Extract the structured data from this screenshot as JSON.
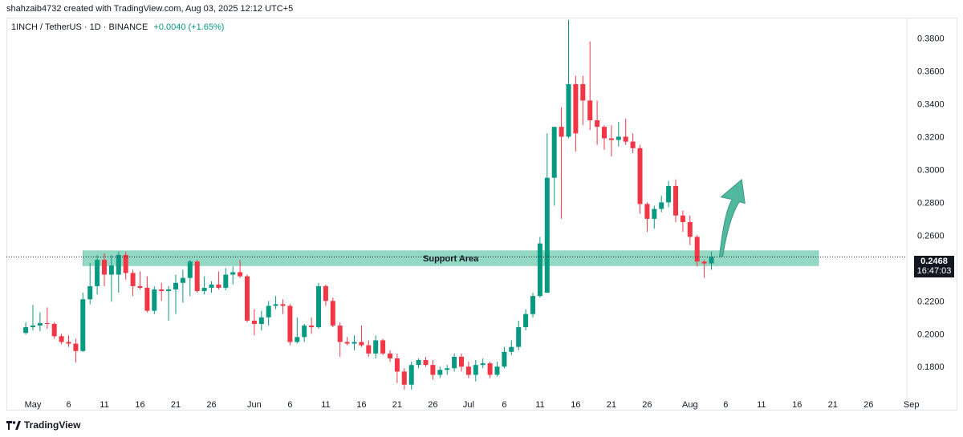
{
  "header": {
    "credit": "shahzaib4732 created with TradingView.com, Aug 03, 2025 12:12 UTC+5"
  },
  "legend": {
    "symbol": "1INCH / TetherUS · 1D · BINANCE",
    "change": "+0.0040 (+1.65%)"
  },
  "price_tag": {
    "value": "0.2468",
    "countdown": "16:47:03"
  },
  "footer": {
    "brand": "TradingView"
  },
  "colors": {
    "up": "#089981",
    "down": "#f23645",
    "support": "#7fd1b9",
    "arrow": "#4fb89e",
    "grid": "#ffffff",
    "axis_text": "#131722"
  },
  "chart_data": {
    "type": "candlestick",
    "y_axis": {
      "position": "right",
      "ticks": [
        0.18,
        0.2,
        0.22,
        0.24,
        0.26,
        0.28,
        0.3,
        0.32,
        0.34,
        0.36,
        0.38
      ],
      "tick_labels": [
        "0.1800",
        "0.2000",
        "0.2200",
        "0.2400",
        "0.2600",
        "0.2800",
        "0.3000",
        "0.3200",
        "0.3400",
        "0.3600",
        "0.3800"
      ],
      "range": [
        0.164,
        0.392
      ]
    },
    "x_axis": {
      "labels": [
        {
          "date": "2025-05-01",
          "text": "May"
        },
        {
          "date": "2025-05-06",
          "text": "6"
        },
        {
          "date": "2025-05-11",
          "text": "11"
        },
        {
          "date": "2025-05-16",
          "text": "16"
        },
        {
          "date": "2025-05-21",
          "text": "21"
        },
        {
          "date": "2025-05-26",
          "text": "26"
        },
        {
          "date": "2025-06-01",
          "text": "Jun"
        },
        {
          "date": "2025-06-06",
          "text": "6"
        },
        {
          "date": "2025-06-11",
          "text": "11"
        },
        {
          "date": "2025-06-16",
          "text": "16"
        },
        {
          "date": "2025-06-21",
          "text": "21"
        },
        {
          "date": "2025-06-26",
          "text": "26"
        },
        {
          "date": "2025-07-01",
          "text": "Jul"
        },
        {
          "date": "2025-07-06",
          "text": "6"
        },
        {
          "date": "2025-07-11",
          "text": "11"
        },
        {
          "date": "2025-07-16",
          "text": "16"
        },
        {
          "date": "2025-07-21",
          "text": "21"
        },
        {
          "date": "2025-07-26",
          "text": "26"
        },
        {
          "date": "2025-08-01",
          "text": "Aug"
        },
        {
          "date": "2025-08-06",
          "text": "6"
        },
        {
          "date": "2025-08-11",
          "text": "11"
        },
        {
          "date": "2025-08-16",
          "text": "16"
        },
        {
          "date": "2025-08-21",
          "text": "21"
        },
        {
          "date": "2025-08-26",
          "text": "26"
        },
        {
          "date": "2025-09-01",
          "text": "Sep"
        }
      ]
    },
    "candles": [
      {
        "date": "2025-04-30",
        "o": 0.2005,
        "h": 0.207,
        "l": 0.1995,
        "c": 0.204
      },
      {
        "date": "2025-05-01",
        "o": 0.204,
        "h": 0.2175,
        "l": 0.202,
        "c": 0.205
      },
      {
        "date": "2025-05-02",
        "o": 0.205,
        "h": 0.213,
        "l": 0.2015,
        "c": 0.2065
      },
      {
        "date": "2025-05-03",
        "o": 0.2065,
        "h": 0.216,
        "l": 0.203,
        "c": 0.206
      },
      {
        "date": "2025-05-04",
        "o": 0.206,
        "h": 0.207,
        "l": 0.197,
        "c": 0.1985
      },
      {
        "date": "2025-05-05",
        "o": 0.1985,
        "h": 0.2,
        "l": 0.1935,
        "c": 0.195
      },
      {
        "date": "2025-05-06",
        "o": 0.195,
        "h": 0.199,
        "l": 0.192,
        "c": 0.194
      },
      {
        "date": "2025-05-07",
        "o": 0.194,
        "h": 0.197,
        "l": 0.1825,
        "c": 0.1895
      },
      {
        "date": "2025-05-08",
        "o": 0.1895,
        "h": 0.225,
        "l": 0.189,
        "c": 0.221
      },
      {
        "date": "2025-05-09",
        "o": 0.221,
        "h": 0.243,
        "l": 0.218,
        "c": 0.229
      },
      {
        "date": "2025-05-10",
        "o": 0.229,
        "h": 0.248,
        "l": 0.224,
        "c": 0.245
      },
      {
        "date": "2025-05-11",
        "o": 0.245,
        "h": 0.249,
        "l": 0.229,
        "c": 0.236
      },
      {
        "date": "2025-05-12",
        "o": 0.236,
        "h": 0.248,
        "l": 0.2195,
        "c": 0.2415
      },
      {
        "date": "2025-05-13",
        "o": 0.236,
        "h": 0.25,
        "l": 0.225,
        "c": 0.248
      },
      {
        "date": "2025-05-14",
        "o": 0.248,
        "h": 0.25,
        "l": 0.233,
        "c": 0.237
      },
      {
        "date": "2025-05-15",
        "o": 0.237,
        "h": 0.239,
        "l": 0.223,
        "c": 0.229
      },
      {
        "date": "2025-05-16",
        "o": 0.229,
        "h": 0.238,
        "l": 0.227,
        "c": 0.228
      },
      {
        "date": "2025-05-17",
        "o": 0.228,
        "h": 0.235,
        "l": 0.213,
        "c": 0.214
      },
      {
        "date": "2025-05-18",
        "o": 0.214,
        "h": 0.229,
        "l": 0.212,
        "c": 0.227
      },
      {
        "date": "2025-05-19",
        "o": 0.227,
        "h": 0.231,
        "l": 0.22,
        "c": 0.226
      },
      {
        "date": "2025-05-20",
        "o": 0.226,
        "h": 0.229,
        "l": 0.208,
        "c": 0.227
      },
      {
        "date": "2025-05-21",
        "o": 0.227,
        "h": 0.236,
        "l": 0.212,
        "c": 0.231
      },
      {
        "date": "2025-05-22",
        "o": 0.231,
        "h": 0.239,
        "l": 0.219,
        "c": 0.234
      },
      {
        "date": "2025-05-23",
        "o": 0.234,
        "h": 0.245,
        "l": 0.223,
        "c": 0.244
      },
      {
        "date": "2025-05-24",
        "o": 0.244,
        "h": 0.245,
        "l": 0.225,
        "c": 0.226
      },
      {
        "date": "2025-05-25",
        "o": 0.226,
        "h": 0.235,
        "l": 0.224,
        "c": 0.228
      },
      {
        "date": "2025-05-26",
        "o": 0.228,
        "h": 0.232,
        "l": 0.225,
        "c": 0.23
      },
      {
        "date": "2025-05-27",
        "o": 0.23,
        "h": 0.238,
        "l": 0.227,
        "c": 0.228
      },
      {
        "date": "2025-05-28",
        "o": 0.228,
        "h": 0.24,
        "l": 0.2265,
        "c": 0.236
      },
      {
        "date": "2025-05-29",
        "o": 0.236,
        "h": 0.241,
        "l": 0.23,
        "c": 0.2375
      },
      {
        "date": "2025-05-30",
        "o": 0.2375,
        "h": 0.245,
        "l": 0.234,
        "c": 0.235
      },
      {
        "date": "2025-05-31",
        "o": 0.235,
        "h": 0.236,
        "l": 0.207,
        "c": 0.208
      },
      {
        "date": "2025-06-01",
        "o": 0.208,
        "h": 0.215,
        "l": 0.199,
        "c": 0.206
      },
      {
        "date": "2025-06-02",
        "o": 0.206,
        "h": 0.214,
        "l": 0.202,
        "c": 0.21
      },
      {
        "date": "2025-06-03",
        "o": 0.21,
        "h": 0.22,
        "l": 0.205,
        "c": 0.217
      },
      {
        "date": "2025-06-04",
        "o": 0.217,
        "h": 0.223,
        "l": 0.215,
        "c": 0.218
      },
      {
        "date": "2025-06-05",
        "o": 0.218,
        "h": 0.221,
        "l": 0.212,
        "c": 0.217
      },
      {
        "date": "2025-06-06",
        "o": 0.217,
        "h": 0.218,
        "l": 0.193,
        "c": 0.195
      },
      {
        "date": "2025-06-07",
        "o": 0.195,
        "h": 0.21,
        "l": 0.194,
        "c": 0.198
      },
      {
        "date": "2025-06-08",
        "o": 0.198,
        "h": 0.206,
        "l": 0.195,
        "c": 0.205
      },
      {
        "date": "2025-06-09",
        "o": 0.205,
        "h": 0.21,
        "l": 0.2,
        "c": 0.204
      },
      {
        "date": "2025-06-10",
        "o": 0.204,
        "h": 0.231,
        "l": 0.203,
        "c": 0.229
      },
      {
        "date": "2025-06-11",
        "o": 0.229,
        "h": 0.23,
        "l": 0.217,
        "c": 0.22
      },
      {
        "date": "2025-06-12",
        "o": 0.22,
        "h": 0.222,
        "l": 0.204,
        "c": 0.205
      },
      {
        "date": "2025-06-13",
        "o": 0.205,
        "h": 0.207,
        "l": 0.186,
        "c": 0.195
      },
      {
        "date": "2025-06-14",
        "o": 0.195,
        "h": 0.198,
        "l": 0.193,
        "c": 0.194
      },
      {
        "date": "2025-06-15",
        "o": 0.194,
        "h": 0.199,
        "l": 0.19,
        "c": 0.195
      },
      {
        "date": "2025-06-16",
        "o": 0.195,
        "h": 0.205,
        "l": 0.192,
        "c": 0.193
      },
      {
        "date": "2025-06-17",
        "o": 0.193,
        "h": 0.196,
        "l": 0.186,
        "c": 0.188
      },
      {
        "date": "2025-06-18",
        "o": 0.188,
        "h": 0.199,
        "l": 0.185,
        "c": 0.196
      },
      {
        "date": "2025-06-19",
        "o": 0.196,
        "h": 0.197,
        "l": 0.187,
        "c": 0.188
      },
      {
        "date": "2025-06-20",
        "o": 0.188,
        "h": 0.19,
        "l": 0.183,
        "c": 0.185
      },
      {
        "date": "2025-06-21",
        "o": 0.185,
        "h": 0.188,
        "l": 0.17,
        "c": 0.177
      },
      {
        "date": "2025-06-22",
        "o": 0.177,
        "h": 0.179,
        "l": 0.166,
        "c": 0.169
      },
      {
        "date": "2025-06-23",
        "o": 0.169,
        "h": 0.183,
        "l": 0.166,
        "c": 0.181
      },
      {
        "date": "2025-06-24",
        "o": 0.181,
        "h": 0.185,
        "l": 0.179,
        "c": 0.184
      },
      {
        "date": "2025-06-25",
        "o": 0.184,
        "h": 0.186,
        "l": 0.18,
        "c": 0.181
      },
      {
        "date": "2025-06-26",
        "o": 0.181,
        "h": 0.184,
        "l": 0.172,
        "c": 0.175
      },
      {
        "date": "2025-06-27",
        "o": 0.175,
        "h": 0.18,
        "l": 0.173,
        "c": 0.178
      },
      {
        "date": "2025-06-28",
        "o": 0.178,
        "h": 0.181,
        "l": 0.175,
        "c": 0.179
      },
      {
        "date": "2025-06-29",
        "o": 0.179,
        "h": 0.188,
        "l": 0.177,
        "c": 0.186
      },
      {
        "date": "2025-06-30",
        "o": 0.186,
        "h": 0.188,
        "l": 0.177,
        "c": 0.18
      },
      {
        "date": "2025-07-01",
        "o": 0.18,
        "h": 0.183,
        "l": 0.173,
        "c": 0.175
      },
      {
        "date": "2025-07-02",
        "o": 0.175,
        "h": 0.184,
        "l": 0.171,
        "c": 0.181
      },
      {
        "date": "2025-07-03",
        "o": 0.181,
        "h": 0.185,
        "l": 0.179,
        "c": 0.182
      },
      {
        "date": "2025-07-04",
        "o": 0.182,
        "h": 0.183,
        "l": 0.173,
        "c": 0.175
      },
      {
        "date": "2025-07-05",
        "o": 0.175,
        "h": 0.183,
        "l": 0.174,
        "c": 0.18
      },
      {
        "date": "2025-07-06",
        "o": 0.18,
        "h": 0.192,
        "l": 0.179,
        "c": 0.189
      },
      {
        "date": "2025-07-07",
        "o": 0.189,
        "h": 0.196,
        "l": 0.187,
        "c": 0.192
      },
      {
        "date": "2025-07-08",
        "o": 0.192,
        "h": 0.208,
        "l": 0.19,
        "c": 0.204
      },
      {
        "date": "2025-07-09",
        "o": 0.204,
        "h": 0.215,
        "l": 0.202,
        "c": 0.212
      },
      {
        "date": "2025-07-10",
        "o": 0.212,
        "h": 0.225,
        "l": 0.21,
        "c": 0.223
      },
      {
        "date": "2025-07-11",
        "o": 0.223,
        "h": 0.259,
        "l": 0.222,
        "c": 0.255
      },
      {
        "date": "2025-07-12",
        "o": 0.225,
        "h": 0.322,
        "l": 0.225,
        "c": 0.295
      },
      {
        "date": "2025-07-13",
        "o": 0.295,
        "h": 0.325,
        "l": 0.278,
        "c": 0.326
      },
      {
        "date": "2025-07-14",
        "o": 0.326,
        "h": 0.338,
        "l": 0.27,
        "c": 0.32
      },
      {
        "date": "2025-07-15",
        "o": 0.32,
        "h": 0.391,
        "l": 0.319,
        "c": 0.352
      },
      {
        "date": "2025-07-16",
        "o": 0.352,
        "h": 0.357,
        "l": 0.311,
        "c": 0.322
      },
      {
        "date": "2025-07-17",
        "o": 0.352,
        "h": 0.357,
        "l": 0.327,
        "c": 0.342
      },
      {
        "date": "2025-07-18",
        "o": 0.342,
        "h": 0.378,
        "l": 0.324,
        "c": 0.33
      },
      {
        "date": "2025-07-19",
        "o": 0.33,
        "h": 0.342,
        "l": 0.315,
        "c": 0.326
      },
      {
        "date": "2025-07-20",
        "o": 0.326,
        "h": 0.327,
        "l": 0.312,
        "c": 0.319
      },
      {
        "date": "2025-07-21",
        "o": 0.319,
        "h": 0.327,
        "l": 0.308,
        "c": 0.318
      },
      {
        "date": "2025-07-22",
        "o": 0.318,
        "h": 0.329,
        "l": 0.314,
        "c": 0.32
      },
      {
        "date": "2025-07-23",
        "o": 0.32,
        "h": 0.331,
        "l": 0.315,
        "c": 0.317
      },
      {
        "date": "2025-07-24",
        "o": 0.317,
        "h": 0.322,
        "l": 0.31,
        "c": 0.313
      },
      {
        "date": "2025-07-25",
        "o": 0.313,
        "h": 0.315,
        "l": 0.273,
        "c": 0.279
      },
      {
        "date": "2025-07-26",
        "o": 0.279,
        "h": 0.28,
        "l": 0.262,
        "c": 0.27
      },
      {
        "date": "2025-07-27",
        "o": 0.27,
        "h": 0.278,
        "l": 0.264,
        "c": 0.276
      },
      {
        "date": "2025-07-28",
        "o": 0.276,
        "h": 0.284,
        "l": 0.274,
        "c": 0.28
      },
      {
        "date": "2025-07-29",
        "o": 0.28,
        "h": 0.293,
        "l": 0.277,
        "c": 0.29
      },
      {
        "date": "2025-07-30",
        "o": 0.29,
        "h": 0.294,
        "l": 0.268,
        "c": 0.272
      },
      {
        "date": "2025-07-31",
        "o": 0.272,
        "h": 0.275,
        "l": 0.262,
        "c": 0.268
      },
      {
        "date": "2025-08-01",
        "o": 0.268,
        "h": 0.272,
        "l": 0.254,
        "c": 0.259
      },
      {
        "date": "2025-08-02",
        "o": 0.259,
        "h": 0.26,
        "l": 0.241,
        "c": 0.244
      },
      {
        "date": "2025-08-03",
        "o": 0.244,
        "h": 0.245,
        "l": 0.234,
        "c": 0.2428
      },
      {
        "date": "2025-08-04",
        "o": 0.2428,
        "h": 0.25,
        "l": 0.239,
        "c": 0.2468
      }
    ],
    "current_price": 0.2468,
    "annotations": [
      {
        "type": "zone",
        "label": "Support Area",
        "from": 0.2415,
        "to": 0.2505,
        "start": "2025-05-08",
        "end": "2025-08-19"
      },
      {
        "type": "arrow",
        "direction": "up",
        "from_date": "2025-08-04",
        "from_price": 0.247,
        "to_date": "2025-08-06",
        "to_price": 0.294
      }
    ]
  }
}
